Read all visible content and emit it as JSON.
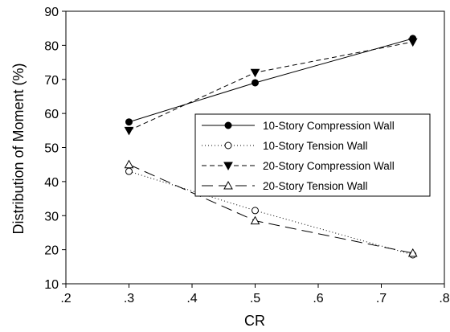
{
  "chart_data": {
    "type": "line",
    "xlabel": "CR",
    "ylabel": "Distribution of Moment (%)",
    "xlim": [
      0.2,
      0.8
    ],
    "ylim": [
      10,
      90
    ],
    "xticks": [
      0.2,
      0.3,
      0.4,
      0.5,
      0.6,
      0.7,
      0.8
    ],
    "xtick_labels": [
      ".2",
      ".3",
      ".4",
      ".5",
      ".6",
      ".7",
      ".8"
    ],
    "yticks": [
      10,
      20,
      30,
      40,
      50,
      60,
      70,
      80,
      90
    ],
    "ytick_labels": [
      "10",
      "20",
      "30",
      "40",
      "50",
      "60",
      "70",
      "80",
      "90"
    ],
    "grid": false,
    "legend_position": "middle-right",
    "series": [
      {
        "name": "10-Story Compression Wall",
        "x": [
          0.3,
          0.5,
          0.75
        ],
        "values": [
          57.5,
          69,
          82
        ],
        "line": "solid",
        "marker": "filled-circle",
        "color": "#000000"
      },
      {
        "name": "10-Story Tension Wall",
        "x": [
          0.3,
          0.5,
          0.75
        ],
        "values": [
          43,
          31.5,
          18.5
        ],
        "line": "dotted",
        "marker": "open-circle",
        "color": "#000000"
      },
      {
        "name": "20-Story Compression Wall",
        "x": [
          0.3,
          0.5,
          0.75
        ],
        "values": [
          55,
          72,
          81
        ],
        "line": "short-dash",
        "marker": "filled-triangle-down",
        "color": "#000000"
      },
      {
        "name": "20-Story Tension Wall",
        "x": [
          0.3,
          0.5,
          0.75
        ],
        "values": [
          45,
          28.5,
          19
        ],
        "line": "long-dash",
        "marker": "open-triangle-up",
        "color": "#000000"
      }
    ]
  }
}
